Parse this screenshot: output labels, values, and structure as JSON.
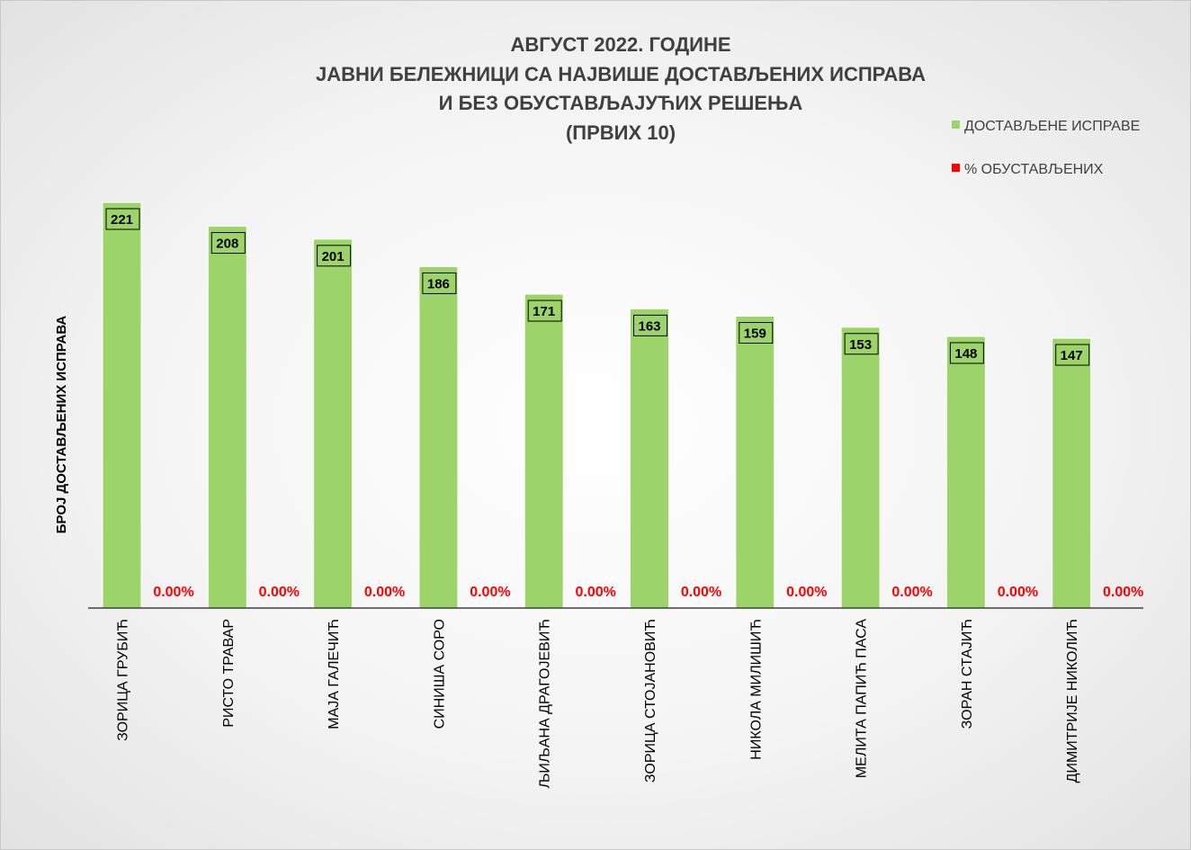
{
  "chart_data": {
    "type": "bar",
    "title_lines": [
      "АВГУСТ 2022. ГОДИНЕ",
      "ЈАВНИ БЕЛЕЖНИЦИ СА НАЈВИШЕ ДОСТАВЉЕНИХ ИСПРАВА",
      "И БЕЗ ОБУСТАВЉАЈУЋИХ РЕШЕЊА",
      "(ПРВИХ 10)"
    ],
    "ylabel": "БРОЈ ДОСТАВЉЕНИХ ИСПРАВА",
    "xlabel": "",
    "categories": [
      "ЗОРИЦА  ГРУБИЋ",
      "РИСТО ТРАВАР",
      "МАЈА ГАЛЕЧИЋ",
      "СИНИША СОРО",
      "ЉИЉАНА ДРАГОЈЕВИЋ",
      "ЗОРИЦА СТОЈАНОВИЋ",
      "НИКОЛА МИЛИШИЋ",
      "МЕЛИТА ПАПИЋ ПАСА",
      "ЗОРАН СТАЈИЋ",
      "ДИМИТРИЈЕ НИКОЛИЋ"
    ],
    "series": [
      {
        "name": "ДОСТАВЉЕНЕ ИСПРАВЕ",
        "color": "#9dd46a",
        "values": [
          221,
          208,
          201,
          186,
          171,
          163,
          159,
          153,
          148,
          147
        ],
        "labels": [
          "221",
          "208",
          "201",
          "186",
          "171",
          "163",
          "159",
          "153",
          "148",
          "147"
        ]
      },
      {
        "name": "% ОБУСТАВЉЕНИХ",
        "color": "#ff0000",
        "values": [
          0,
          0,
          0,
          0,
          0,
          0,
          0,
          0,
          0,
          0
        ],
        "labels": [
          "0.00%",
          "0.00%",
          "0.00%",
          "0.00%",
          "0.00%",
          "0.00%",
          "0.00%",
          "0.00%",
          "0.00%",
          "0.00%"
        ]
      }
    ],
    "ylim": [
      0,
      221
    ],
    "grid": false,
    "legend_position": "top-right"
  }
}
